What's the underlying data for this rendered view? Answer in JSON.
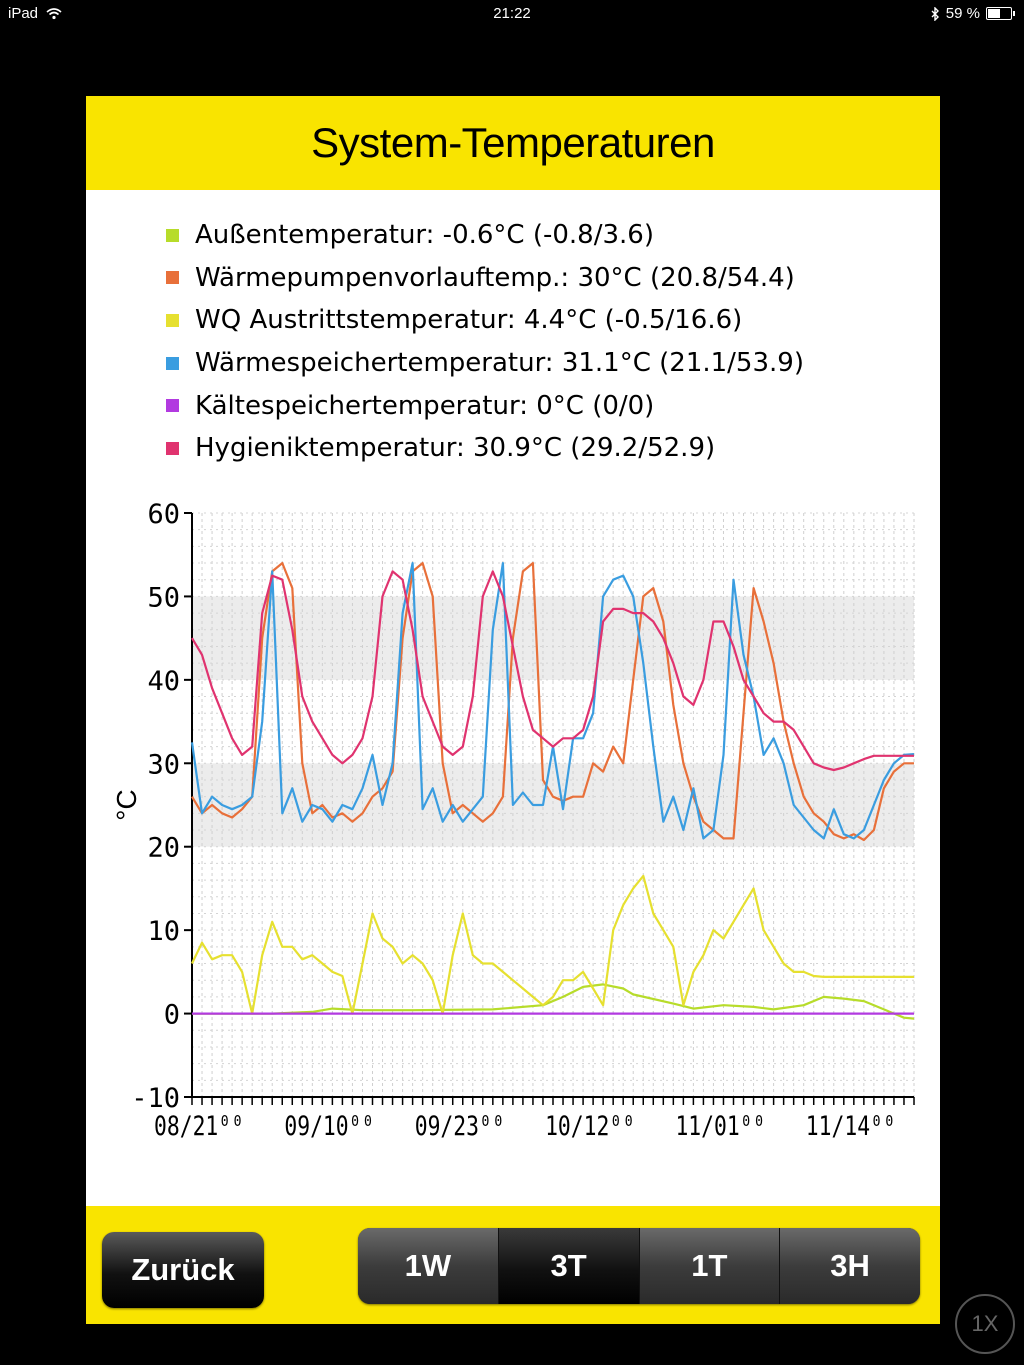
{
  "status": {
    "device": "iPad",
    "time": "21:22",
    "battery": "59 %",
    "battery_level": 0.59
  },
  "title": "System-Temperaturen",
  "legend": [
    {
      "label": "Außentemperatur: -0.6°C (-0.8/3.6)",
      "color": "#b7dc2a"
    },
    {
      "label": "Wärmepumpenvorlauftemp.: 30°C (20.8/54.4)",
      "color": "#e8703a"
    },
    {
      "label": "WQ Austrittstemperatur: 4.4°C (-0.5/16.6)",
      "color": "#e6e030"
    },
    {
      "label": "Wärmespeichertemperatur: 31.1°C (21.1/53.9)",
      "color": "#3a9de0"
    },
    {
      "label": "Kältespeichertemperatur: 0°C (0/0)",
      "color": "#b23ae0"
    },
    {
      "label": "Hygieniktemperatur: 30.9°C (29.2/52.9)",
      "color": "#e0336f"
    }
  ],
  "buttons": {
    "back": "Zurück",
    "zoom": "1X"
  },
  "ranges": [
    {
      "label": "1W",
      "active": false
    },
    {
      "label": "3T",
      "active": true
    },
    {
      "label": "1T",
      "active": false
    },
    {
      "label": "3H",
      "active": false
    }
  ],
  "chart_data": {
    "type": "line",
    "ylabel": "°C",
    "ylim": [
      -10,
      60
    ],
    "yticks": [
      60,
      50,
      40,
      30,
      20,
      10,
      0,
      -10
    ],
    "xlim": [
      0,
      72
    ],
    "xticks": [
      {
        "x": 0,
        "label": "08/21⁰⁰"
      },
      {
        "x": 13,
        "label": "09/10⁰⁰"
      },
      {
        "x": 26,
        "label": "09/23⁰⁰"
      },
      {
        "x": 39,
        "label": "10/12⁰⁰"
      },
      {
        "x": 52,
        "label": "11/01⁰⁰"
      },
      {
        "x": 65,
        "label": "11/14⁰⁰"
      }
    ],
    "grid": true,
    "series": [
      {
        "name": "Außentemperatur",
        "color": "#b7dc2a",
        "x": [
          0,
          8,
          12,
          14,
          17,
          22,
          30,
          35,
          37,
          39,
          41,
          43,
          44,
          48,
          50,
          53,
          56,
          58,
          61,
          63,
          65,
          67,
          69,
          71,
          72
        ],
        "y": [
          0,
          0,
          0.2,
          0.6,
          0.4,
          0.4,
          0.5,
          1.0,
          2.0,
          3.2,
          3.5,
          3.0,
          2.3,
          1.2,
          0.6,
          1.0,
          0.8,
          0.5,
          1.0,
          2.0,
          1.8,
          1.5,
          0.5,
          -0.5,
          -0.6
        ]
      },
      {
        "name": "Wärmepumpenvorlauftemp.",
        "color": "#e8703a",
        "x": [
          0,
          1,
          2,
          3,
          4,
          5,
          6,
          7,
          8,
          9,
          10,
          11,
          12,
          13,
          14,
          15,
          16,
          17,
          18,
          19,
          20,
          21,
          22,
          23,
          24,
          25,
          26,
          27,
          28,
          29,
          30,
          31,
          32,
          33,
          34,
          35,
          36,
          37,
          38,
          39,
          40,
          41,
          42,
          43,
          44,
          45,
          46,
          47,
          48,
          49,
          50,
          51,
          52,
          53,
          54,
          55,
          56,
          57,
          58,
          59,
          60,
          61,
          62,
          63,
          64,
          65,
          66,
          67,
          68,
          69,
          70,
          71,
          72
        ],
        "y": [
          26,
          24,
          25,
          24,
          23.5,
          24.5,
          26,
          45,
          53,
          54,
          51,
          30,
          24,
          25,
          23.5,
          24,
          23,
          24,
          26,
          27,
          29,
          45,
          53,
          54,
          50,
          30,
          24,
          25,
          24,
          23,
          24,
          26,
          45,
          53,
          54,
          28,
          26,
          25.5,
          26,
          26,
          30,
          29,
          32,
          30,
          40,
          50,
          51,
          47,
          37,
          30,
          26,
          23,
          22,
          21,
          21,
          36,
          51,
          47,
          42,
          35,
          30,
          26,
          24,
          23,
          21.5,
          21,
          21.5,
          20.8,
          22,
          27,
          29,
          30,
          30
        ]
      },
      {
        "name": "WQ Austrittstemperatur",
        "color": "#e6e030",
        "x": [
          0,
          1,
          2,
          3,
          4,
          5,
          6,
          7,
          8,
          9,
          10,
          11,
          12,
          13,
          14,
          15,
          16,
          17,
          18,
          19,
          20,
          21,
          22,
          23,
          24,
          25,
          26,
          27,
          28,
          29,
          30,
          31,
          32,
          33,
          34,
          35,
          36,
          37,
          38,
          39,
          40,
          41,
          42,
          43,
          44,
          45,
          46,
          47,
          48,
          49,
          50,
          51,
          52,
          53,
          54,
          55,
          56,
          57,
          58,
          59,
          60,
          61,
          62,
          63,
          64,
          65,
          66,
          67,
          68,
          69,
          70,
          71,
          72
        ],
        "y": [
          6,
          8.5,
          6.5,
          7,
          7,
          5,
          0,
          7,
          11,
          8,
          8,
          6.5,
          7,
          6,
          5,
          4.5,
          0,
          6,
          12,
          9,
          8,
          6,
          7,
          6,
          4,
          0,
          7,
          12,
          7,
          6,
          6,
          5,
          4,
          3,
          2,
          1,
          2,
          4,
          4,
          5,
          3,
          1,
          10,
          13,
          15,
          16.5,
          12,
          10,
          8,
          1,
          5,
          7,
          10,
          9,
          11,
          13,
          15,
          10,
          8,
          6,
          5,
          5,
          4.5,
          4.4,
          4.4,
          4.4,
          4.4,
          4.4,
          4.4,
          4.4,
          4.4,
          4.4,
          4.4
        ]
      },
      {
        "name": "Wärmespeichertemperatur",
        "color": "#3a9de0",
        "x": [
          0,
          1,
          2,
          3,
          4,
          5,
          6,
          7,
          8,
          9,
          10,
          11,
          12,
          13,
          14,
          15,
          16,
          17,
          18,
          19,
          20,
          21,
          22,
          23,
          24,
          25,
          26,
          27,
          28,
          29,
          30,
          31,
          32,
          33,
          34,
          35,
          36,
          37,
          38,
          39,
          40,
          41,
          42,
          43,
          44,
          45,
          46,
          47,
          48,
          49,
          50,
          51,
          52,
          53,
          54,
          55,
          56,
          57,
          58,
          59,
          60,
          61,
          62,
          63,
          64,
          65,
          66,
          67,
          68,
          69,
          70,
          71,
          72
        ],
        "y": [
          32.5,
          24,
          26,
          25,
          24.5,
          25,
          26,
          35,
          53,
          24,
          27,
          23,
          25,
          24.5,
          23,
          25,
          24.5,
          27,
          31,
          25,
          30,
          48,
          54,
          24.5,
          27,
          23,
          25,
          23,
          24.5,
          26,
          46,
          54,
          25,
          26.5,
          25,
          25,
          32,
          24.5,
          33,
          33,
          36,
          50,
          52,
          52.5,
          50,
          42,
          32,
          23,
          26,
          22,
          27,
          21,
          22,
          31,
          52,
          43,
          38,
          31,
          33,
          30,
          25,
          23.5,
          22,
          21,
          24.5,
          21.5,
          21,
          22,
          25,
          28,
          30,
          31,
          31.1
        ]
      },
      {
        "name": "Kältespeichertemperatur",
        "color": "#b23ae0",
        "x": [
          0,
          72
        ],
        "y": [
          0,
          0
        ]
      },
      {
        "name": "Hygieniktemperatur",
        "color": "#e0336f",
        "x": [
          0,
          1,
          2,
          3,
          4,
          5,
          6,
          7,
          8,
          9,
          10,
          11,
          12,
          13,
          14,
          15,
          16,
          17,
          18,
          19,
          20,
          21,
          22,
          23,
          24,
          25,
          26,
          27,
          28,
          29,
          30,
          31,
          32,
          33,
          34,
          35,
          36,
          37,
          38,
          39,
          40,
          41,
          42,
          43,
          44,
          45,
          46,
          47,
          48,
          49,
          50,
          51,
          52,
          53,
          54,
          55,
          56,
          57,
          58,
          59,
          60,
          61,
          62,
          63,
          64,
          65,
          66,
          67,
          68,
          69,
          70,
          71,
          72
        ],
        "y": [
          45,
          43,
          39,
          36,
          33,
          31,
          32,
          48,
          52.5,
          52,
          46,
          38,
          35,
          33,
          31,
          30,
          31,
          33,
          38,
          50,
          53,
          52,
          46,
          38,
          35,
          32,
          31,
          32,
          38,
          50,
          53,
          50,
          44,
          38,
          34,
          33,
          32,
          33,
          33,
          34,
          38,
          47,
          48.5,
          48.5,
          48,
          48,
          47,
          45,
          42,
          38,
          37,
          40,
          47,
          47,
          44,
          40,
          38,
          36,
          35,
          35,
          34,
          32,
          30,
          29.5,
          29.2,
          29.5,
          30,
          30.5,
          30.9,
          30.9,
          30.9,
          30.9,
          30.9
        ]
      }
    ]
  }
}
